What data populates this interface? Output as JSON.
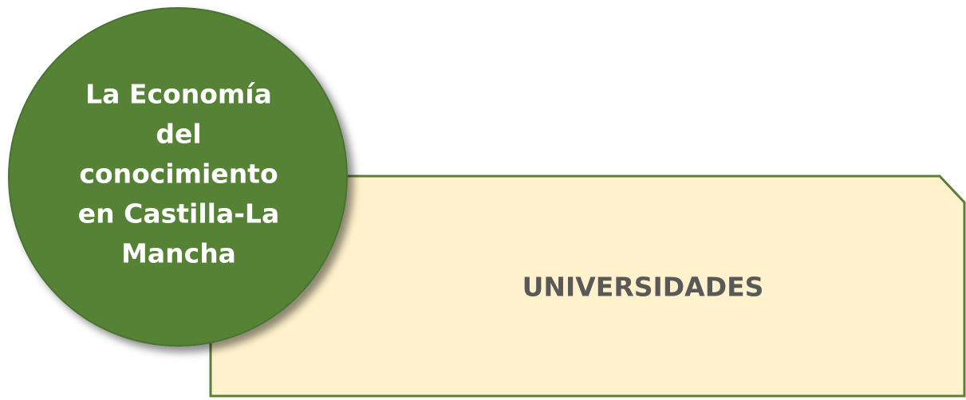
{
  "circle": {
    "lines": [
      "La Economía",
      "del",
      "conocimiento",
      "en Castilla-La",
      "Mancha"
    ]
  },
  "box": {
    "label": "UNIVERSIDADES"
  }
}
